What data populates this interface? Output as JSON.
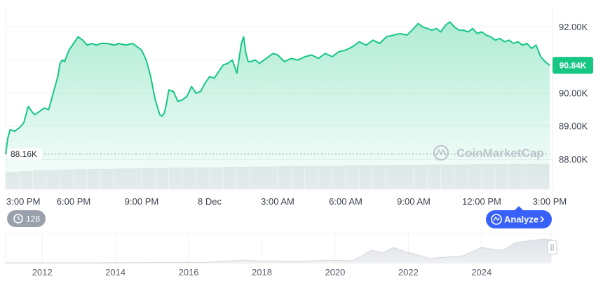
{
  "chart_data": {
    "type": "area",
    "y_axis": {
      "ticks": [
        "92.00K",
        "91.00K",
        "90.00K",
        "89.00K",
        "88.00K"
      ],
      "tick_values": [
        92000,
        91000,
        90000,
        89000,
        88000
      ],
      "range": [
        87100,
        92600
      ]
    },
    "x_axis": {
      "ticks": [
        "3:00 PM",
        "6:00 PM",
        "9:00 PM",
        "8 Dec",
        "3:00 AM",
        "6:00 AM",
        "9:00 AM",
        "12:00 PM",
        "3:00 PM"
      ],
      "tick_hours": [
        0,
        3,
        6,
        9,
        12,
        15,
        18,
        21,
        24
      ]
    },
    "series": [
      {
        "color": "#16c784",
        "x_hours": [
          0,
          0.1,
          0.2,
          0.4,
          0.6,
          0.8,
          1.0,
          1.2,
          1.3,
          1.5,
          1.7,
          1.9,
          2.1,
          2.3,
          2.4,
          2.5,
          2.6,
          2.8,
          3.0,
          3.2,
          3.4,
          3.6,
          3.8,
          4.0,
          4.2,
          4.5,
          4.8,
          5.0,
          5.3,
          5.6,
          5.8,
          6.0,
          6.2,
          6.4,
          6.6,
          6.8,
          6.9,
          7.0,
          7.1,
          7.2,
          7.4,
          7.6,
          7.8,
          8.0,
          8.2,
          8.4,
          8.6,
          8.8,
          9.0,
          9.2,
          9.4,
          9.6,
          9.8,
          10.0,
          10.2,
          10.4,
          10.5,
          10.6,
          10.7,
          10.8,
          11.0,
          11.2,
          11.5,
          11.8,
          12.0,
          12.3,
          12.6,
          12.9,
          13.2,
          13.5,
          13.8,
          14.1,
          14.4,
          14.7,
          15.0,
          15.3,
          15.6,
          15.9,
          16.2,
          16.5,
          16.8,
          17.1,
          17.4,
          17.7,
          18.0,
          18.2,
          18.4,
          18.6,
          18.8,
          19.0,
          19.2,
          19.4,
          19.6,
          19.8,
          20.0,
          20.2,
          20.4,
          20.6,
          20.8,
          21.0,
          21.2,
          21.4,
          21.6,
          21.8,
          22.0,
          22.2,
          22.4,
          22.6,
          22.8,
          23.0,
          23.2,
          23.4,
          23.6,
          23.8,
          24.0
        ],
        "values": [
          88160,
          88650,
          88900,
          88850,
          88950,
          89100,
          89600,
          89400,
          89350,
          89450,
          89550,
          89500,
          90000,
          90500,
          90900,
          91000,
          90950,
          91300,
          91500,
          91700,
          91600,
          91450,
          91500,
          91450,
          91500,
          91500,
          91450,
          91500,
          91450,
          91500,
          91400,
          91300,
          91000,
          90500,
          89800,
          89350,
          89300,
          89400,
          89700,
          90100,
          90050,
          89750,
          89800,
          89900,
          90200,
          90000,
          90050,
          90300,
          90500,
          90450,
          90650,
          90850,
          90900,
          91000,
          90600,
          91500,
          91700,
          91200,
          90950,
          90950,
          91000,
          90900,
          91050,
          91200,
          91150,
          90950,
          91050,
          91000,
          91100,
          91150,
          91050,
          91200,
          91100,
          91250,
          91300,
          91400,
          91550,
          91450,
          91600,
          91500,
          91700,
          91750,
          91800,
          91750,
          91950,
          92100,
          92000,
          91950,
          91900,
          91950,
          91850,
          92050,
          92150,
          92000,
          91900,
          91900,
          91850,
          91950,
          91800,
          91850,
          91750,
          91700,
          91600,
          91650,
          91550,
          91600,
          91500,
          91550,
          91450,
          91500,
          91350,
          91450,
          91100,
          90950,
          90840
        ]
      }
    ],
    "volume_bars_relative": [
      0.45,
      0.47,
      0.49,
      0.5,
      0.51,
      0.52,
      0.53,
      0.53,
      0.54,
      0.54,
      0.55,
      0.55,
      0.56,
      0.56,
      0.57,
      0.57,
      0.58,
      0.58,
      0.59,
      0.59,
      0.6,
      0.6,
      0.6,
      0.61,
      0.61,
      0.62,
      0.62,
      0.62,
      0.63,
      0.63,
      0.63,
      0.64,
      0.64,
      0.64,
      0.65,
      0.65,
      0.65,
      0.66,
      0.66,
      0.66
    ],
    "current_price_label": "90.84K",
    "low_label": "88.16K",
    "low_value": 88160,
    "watermark": "CoinMarketCap"
  },
  "controls": {
    "history_count": "128",
    "analyze_label": "Analyze"
  },
  "navigator": {
    "year_labels": [
      "2012",
      "2014",
      "2016",
      "2018",
      "2020",
      "2022",
      "2024"
    ],
    "years": [
      2012,
      2014,
      2016,
      2018,
      2020,
      2022,
      2024
    ],
    "start_year": 2011,
    "end_year": 2025.9,
    "history_x_years": [
      2011,
      2013,
      2015,
      2016.5,
      2017.5,
      2018,
      2019,
      2019.8,
      2020.5,
      2021,
      2021.3,
      2021.6,
      2021.9,
      2022.2,
      2022.6,
      2023,
      2023.5,
      2024,
      2024.2,
      2024.6,
      2024.9,
      2025.1,
      2025.4,
      2025.7,
      2025.9
    ],
    "history_level": [
      0,
      0,
      0.01,
      0.02,
      0.1,
      0.06,
      0.05,
      0.09,
      0.08,
      0.45,
      0.35,
      0.55,
      0.4,
      0.3,
      0.15,
      0.2,
      0.25,
      0.55,
      0.5,
      0.45,
      0.7,
      0.75,
      0.8,
      0.85,
      0.82
    ]
  }
}
